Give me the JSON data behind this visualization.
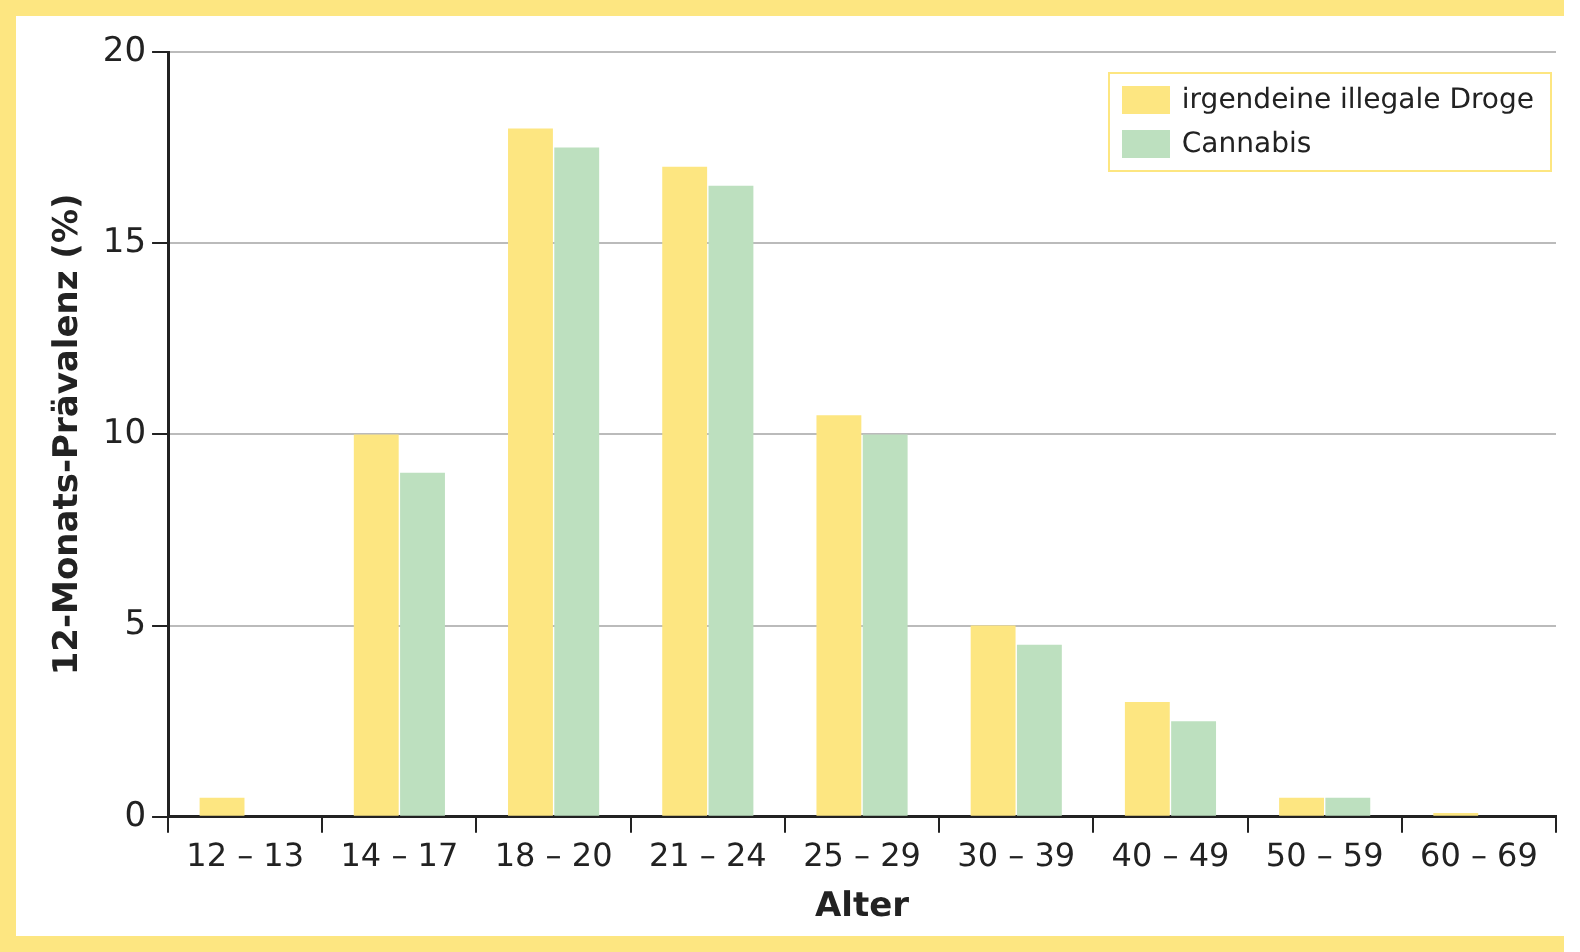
{
  "chart_data": {
    "type": "bar",
    "xlabel": "Alter",
    "ylabel": "12-Monats-Prävalenz (%)",
    "categories": [
      "12 – 13",
      "14 – 17",
      "18 – 20",
      "21 – 24",
      "25 – 29",
      "30 – 39",
      "40 – 49",
      "50 – 59",
      "60 – 69"
    ],
    "series": [
      {
        "name": "irgendeine illegale Droge",
        "color": "#fde681",
        "values": [
          0.5,
          10,
          18,
          17,
          10.5,
          5,
          3,
          0.5,
          0.1
        ]
      },
      {
        "name": "Cannabis",
        "color": "#bde0bf",
        "values": [
          0,
          9,
          17.5,
          16.5,
          10,
          4.5,
          2.5,
          0.5,
          0
        ]
      }
    ],
    "ylim": [
      0,
      20
    ],
    "yticks": [
      0,
      5,
      10,
      15,
      20
    ],
    "grid": "y",
    "legend": "top right"
  }
}
